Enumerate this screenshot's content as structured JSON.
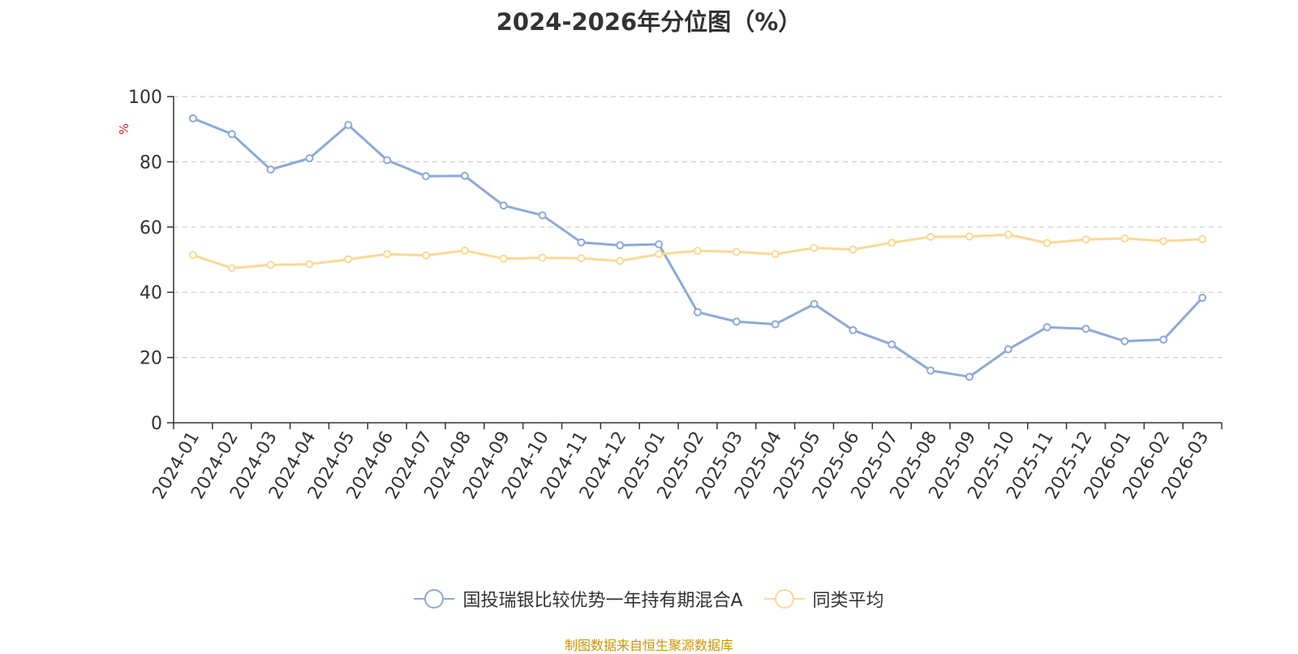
{
  "chart_data": {
    "type": "line",
    "title": "2024-2026年分位图（%）",
    "ylabel": "%",
    "xlabel": "",
    "ylim": [
      0,
      100
    ],
    "yticks": [
      0,
      20,
      40,
      60,
      80,
      100
    ],
    "grid": true,
    "legend_position": "bottom",
    "categories": [
      "2024-01",
      "2024-02",
      "2024-03",
      "2024-04",
      "2024-05",
      "2024-06",
      "2024-07",
      "2024-08",
      "2024-09",
      "2024-10",
      "2024-11",
      "2024-12",
      "2025-01",
      "2025-02",
      "2025-03",
      "2025-04",
      "2025-05",
      "2025-06",
      "2025-07",
      "2025-08",
      "2025-09",
      "2025-10",
      "2025-11",
      "2025-12",
      "2026-01",
      "2026-02",
      "2026-03"
    ],
    "series": [
      {
        "name": "国投瑞银比较优势一年持有期混合A",
        "color": "#8caad8",
        "values": [
          93.3,
          88.5,
          77.6,
          81.1,
          91.3,
          80.5,
          75.6,
          75.7,
          66.6,
          63.6,
          55.3,
          54.4,
          54.7,
          33.9,
          31.0,
          30.2,
          36.4,
          28.4,
          24.0,
          16.0,
          14.1,
          22.5,
          29.3,
          28.8,
          25.0,
          25.5,
          38.3
        ]
      },
      {
        "name": "同类平均",
        "color": "#fad996",
        "values": [
          51.4,
          47.4,
          48.4,
          48.6,
          50.1,
          51.7,
          51.3,
          52.8,
          50.3,
          50.6,
          50.4,
          49.6,
          51.7,
          52.7,
          52.4,
          51.7,
          53.6,
          53.1,
          55.2,
          57.0,
          57.1,
          57.7,
          55.1,
          56.2,
          56.5,
          55.7,
          56.3
        ]
      }
    ]
  },
  "footer": {
    "source": "制图数据来自恒生聚源数据库"
  }
}
